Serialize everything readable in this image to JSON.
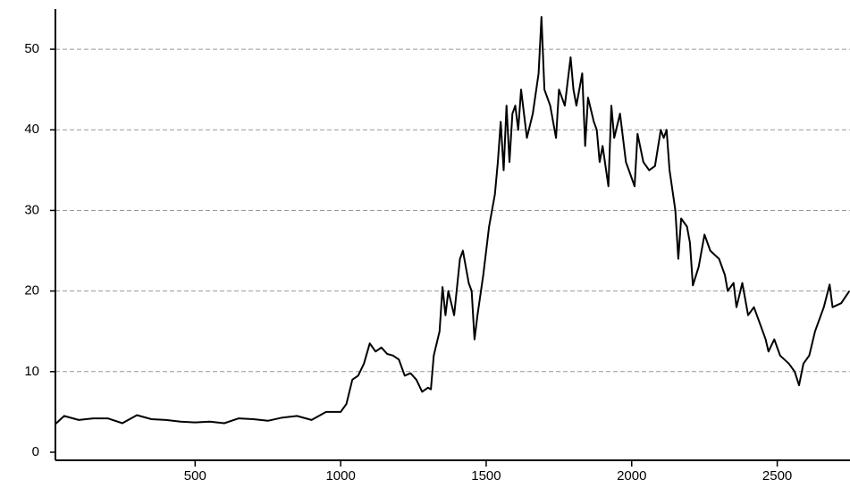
{
  "chart_data": {
    "type": "line",
    "x": [
      20,
      50,
      100,
      150,
      200,
      250,
      300,
      350,
      400,
      450,
      500,
      550,
      600,
      650,
      700,
      750,
      800,
      850,
      900,
      950,
      1000,
      1020,
      1040,
      1060,
      1080,
      1100,
      1120,
      1140,
      1160,
      1180,
      1200,
      1220,
      1240,
      1260,
      1280,
      1300,
      1310,
      1320,
      1340,
      1350,
      1360,
      1370,
      1390,
      1410,
      1420,
      1440,
      1450,
      1460,
      1470,
      1490,
      1510,
      1530,
      1540,
      1550,
      1560,
      1570,
      1580,
      1590,
      1600,
      1610,
      1620,
      1640,
      1660,
      1680,
      1690,
      1700,
      1720,
      1740,
      1750,
      1770,
      1790,
      1800,
      1810,
      1830,
      1840,
      1850,
      1870,
      1880,
      1890,
      1900,
      1920,
      1930,
      1940,
      1960,
      1980,
      2000,
      2010,
      2020,
      2040,
      2060,
      2080,
      2100,
      2110,
      2120,
      2130,
      2150,
      2160,
      2170,
      2190,
      2200,
      2210,
      2230,
      2250,
      2270,
      2300,
      2320,
      2330,
      2350,
      2360,
      2380,
      2400,
      2420,
      2440,
      2460,
      2470,
      2490,
      2510,
      2540,
      2560,
      2575,
      2590,
      2610,
      2630,
      2660,
      2680,
      2690,
      2720,
      2748
    ],
    "series": [
      {
        "color": "#000000",
        "values": [
          3.5,
          4.5,
          4,
          4.2,
          4.2,
          3.6,
          4.6,
          4.1,
          4,
          3.8,
          3.7,
          3.8,
          3.6,
          4.2,
          4.1,
          3.9,
          4.3,
          4.5,
          4,
          5,
          5,
          6,
          9,
          9.5,
          11,
          13.5,
          12.5,
          13,
          12.2,
          12,
          11.5,
          9.5,
          9.8,
          9,
          7.5,
          8,
          7.8,
          12,
          15,
          20.5,
          17,
          20,
          17,
          24,
          25,
          21,
          20,
          14,
          17,
          22,
          28,
          32,
          36,
          41,
          35,
          43,
          36,
          42,
          43,
          40,
          45,
          39,
          42,
          47,
          54,
          45,
          43,
          39,
          45,
          43,
          49,
          45,
          43,
          47,
          38,
          44,
          41,
          40,
          36,
          38,
          33,
          43,
          39,
          42,
          36,
          34,
          33,
          39.5,
          36,
          35,
          35.5,
          40,
          39,
          40,
          35,
          30,
          24,
          29,
          28,
          26,
          20.7,
          23,
          27,
          25,
          24,
          22,
          20,
          21,
          18,
          21,
          17,
          18,
          16,
          14,
          12.5,
          14,
          12,
          11,
          10,
          8.3,
          11,
          12,
          15,
          18,
          20.8,
          18,
          18.5,
          20
        ]
      }
    ],
    "xlim": [
      20,
      2750
    ],
    "ylim": [
      -1,
      55
    ],
    "xticks": [
      500,
      1000,
      1500,
      2000,
      2500
    ],
    "yticks": [
      0,
      10,
      20,
      30,
      40,
      50
    ],
    "grid": true
  }
}
